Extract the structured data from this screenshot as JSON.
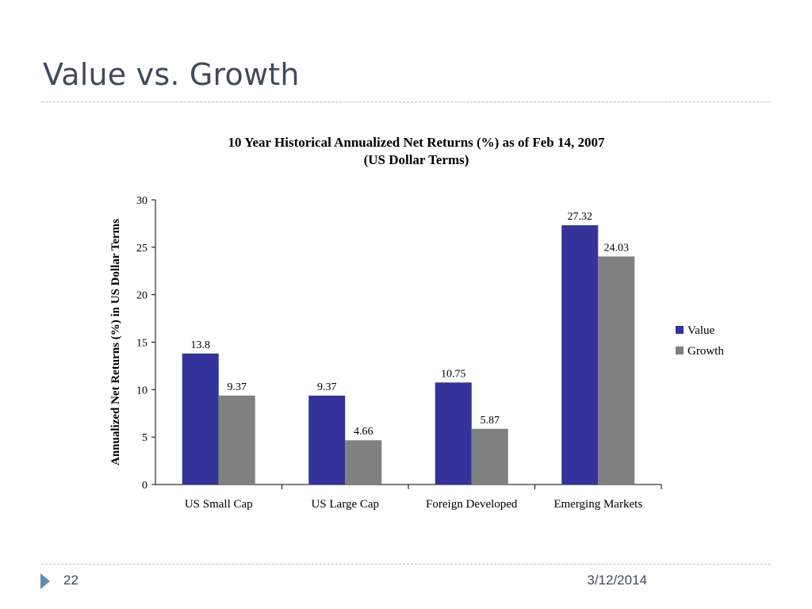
{
  "slide": {
    "title": "Value vs. Growth",
    "number": "22",
    "date": "3/12/2014"
  },
  "chart_data": {
    "type": "bar",
    "title": "10 Year Historical Annualized Net Returns (%) as of Feb 14, 2007",
    "subtitle": "(US Dollar Terms)",
    "xlabel": "",
    "ylabel": "Annualized Net Returns (%) in US Dollar Terms",
    "ylim": [
      0,
      30
    ],
    "yticks": [
      0,
      5,
      10,
      15,
      20,
      25,
      30
    ],
    "grid": false,
    "legend_position": "right",
    "categories": [
      "US Small Cap",
      "US Large Cap",
      "Foreign Developed",
      "Emerging Markets"
    ],
    "series": [
      {
        "name": "Value",
        "color": "#333399",
        "values": [
          13.8,
          9.37,
          10.75,
          27.32
        ],
        "labels": [
          "13.8",
          "9.37",
          "10.75",
          "27.32"
        ]
      },
      {
        "name": "Growth",
        "color": "#808080",
        "values": [
          9.37,
          4.66,
          5.87,
          24.03
        ],
        "labels": [
          "9.37",
          "4.66",
          "5.87",
          "24.03"
        ]
      }
    ]
  }
}
